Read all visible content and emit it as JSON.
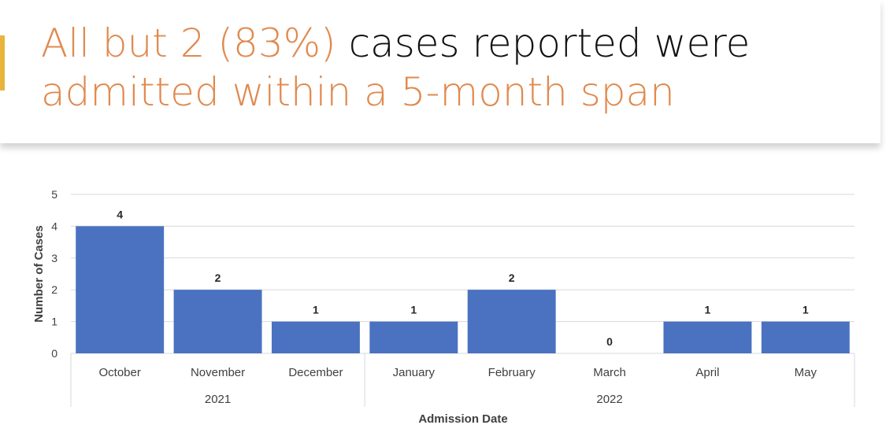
{
  "slide": {
    "title_line1_accent": "All but 2 (83%)",
    "title_line1_rest": " cases reported were",
    "title_line2_accent": "admitted within a 5-month span"
  },
  "colors": {
    "accent": "#e08a4f",
    "bar": "#4a72c0",
    "strip": "#e9b43c"
  },
  "chart_data": {
    "type": "bar",
    "categories": [
      "October",
      "November",
      "December",
      "January",
      "February",
      "March",
      "April",
      "May"
    ],
    "values": [
      4,
      2,
      1,
      1,
      2,
      0,
      1,
      1
    ],
    "groups": [
      {
        "label": "2021",
        "categories": [
          "October",
          "November",
          "December"
        ]
      },
      {
        "label": "2022",
        "categories": [
          "January",
          "February",
          "March",
          "April",
          "May"
        ]
      }
    ],
    "xlabel": "Admission Date",
    "ylabel": "Number of Cases",
    "ylim": [
      0,
      5
    ],
    "yticks": [
      0,
      1,
      2,
      3,
      4,
      5
    ],
    "grid": true,
    "data_labels": true
  }
}
